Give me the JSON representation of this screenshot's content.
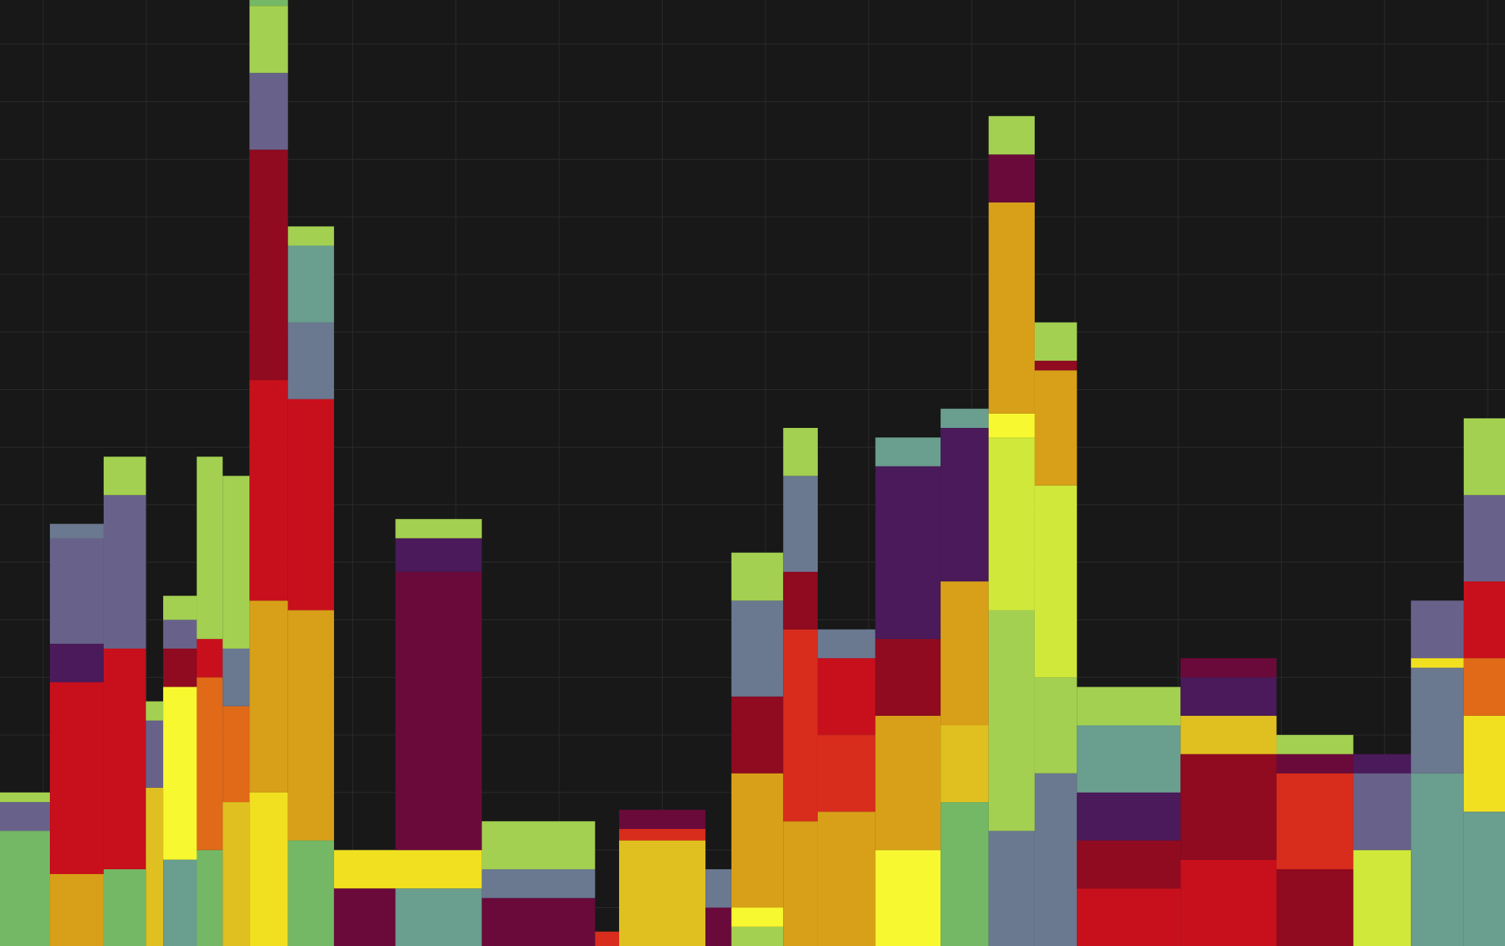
{
  "chart_data": {
    "type": "bar",
    "stacked": true,
    "grid": true,
    "legend": "none",
    "title": "",
    "xlabel": "",
    "ylabel": "",
    "xlim": [
      0,
      1568
    ],
    "ylim": [
      0,
      986
    ],
    "grid_x_step": 107.5,
    "grid_y_step": 60,
    "colors": {
      "background": "#181818",
      "grid": "#2a2a2a",
      "lime": "#cfe83a",
      "light_green": "#a3d050",
      "green": "#74b865",
      "teal": "#6a9e8e",
      "slate": "#6a7890",
      "grey_purple": "#68628a",
      "purple": "#4a1a5a",
      "wine": "#6a0a3a",
      "maroon": "#900a20",
      "red": "#c8101c",
      "vermilion": "#d82c1c",
      "orange": "#e06a18",
      "amber": "#d8a018",
      "yellow": "#f0e020",
      "bright_yellow": "#f8f830",
      "gold": "#e0c020"
    },
    "groups": [
      {
        "x0": 0,
        "x1": 52,
        "stack": [
          [
            "green",
            120
          ],
          [
            "grey_purple",
            30
          ],
          [
            "light_green",
            10
          ]
        ]
      },
      {
        "x0": 52,
        "x1": 108,
        "stack": [
          [
            "amber",
            75
          ],
          [
            "red",
            200
          ],
          [
            "purple",
            40
          ],
          [
            "grey_purple",
            110
          ],
          [
            "slate",
            15
          ]
        ]
      },
      {
        "x0": 108,
        "x1": 152,
        "stack": [
          [
            "green",
            80
          ],
          [
            "red",
            230
          ],
          [
            "grey_purple",
            160
          ],
          [
            "light_green",
            40
          ]
        ]
      },
      {
        "x0": 152,
        "x1": 170,
        "stack": [
          [
            "gold",
            165
          ],
          [
            "grey_purple",
            70
          ],
          [
            "light_green",
            20
          ]
        ]
      },
      {
        "x0": 170,
        "x1": 205,
        "stack": [
          [
            "teal",
            90
          ],
          [
            "bright_yellow",
            180
          ],
          [
            "maroon",
            40
          ],
          [
            "grey_purple",
            30
          ],
          [
            "light_green",
            25
          ]
        ]
      },
      {
        "x0": 205,
        "x1": 232,
        "stack": [
          [
            "green",
            100
          ],
          [
            "orange",
            180
          ],
          [
            "red",
            40
          ],
          [
            "light_green",
            190
          ]
        ]
      },
      {
        "x0": 232,
        "x1": 260,
        "stack": [
          [
            "gold",
            150
          ],
          [
            "orange",
            100
          ],
          [
            "slate",
            60
          ],
          [
            "light_green",
            180
          ]
        ]
      },
      {
        "x0": 260,
        "x1": 300,
        "stack": [
          [
            "yellow",
            160
          ],
          [
            "amber",
            200
          ],
          [
            "red",
            230
          ],
          [
            "maroon",
            240
          ],
          [
            "grey_purple",
            80
          ],
          [
            "light_green",
            70
          ],
          [
            "green",
            20
          ]
        ]
      },
      {
        "x0": 300,
        "x1": 348,
        "stack": [
          [
            "green",
            110
          ],
          [
            "amber",
            240
          ],
          [
            "red",
            220
          ],
          [
            "slate",
            80
          ],
          [
            "teal",
            80
          ],
          [
            "light_green",
            20
          ]
        ]
      },
      {
        "x0": 348,
        "x1": 412,
        "stack": [
          [
            "wine",
            60
          ],
          [
            "yellow",
            40
          ]
        ]
      },
      {
        "x0": 412,
        "x1": 502,
        "stack": [
          [
            "teal",
            60
          ],
          [
            "yellow",
            40
          ],
          [
            "wine",
            290
          ],
          [
            "purple",
            35
          ],
          [
            "light_green",
            20
          ]
        ]
      },
      {
        "x0": 502,
        "x1": 620,
        "stack": [
          [
            "wine",
            50
          ],
          [
            "slate",
            30
          ],
          [
            "light_green",
            50
          ]
        ]
      },
      {
        "x0": 620,
        "x1": 645,
        "stack": [
          [
            "vermilion",
            15
          ]
        ]
      },
      {
        "x0": 645,
        "x1": 735,
        "stack": [
          [
            "gold",
            110
          ],
          [
            "vermilion",
            12
          ],
          [
            "wine",
            20
          ]
        ]
      },
      {
        "x0": 735,
        "x1": 762,
        "stack": [
          [
            "wine",
            40
          ],
          [
            "slate",
            40
          ]
        ]
      },
      {
        "x0": 762,
        "x1": 816,
        "stack": [
          [
            "light_green",
            20
          ],
          [
            "bright_yellow",
            20
          ],
          [
            "amber",
            140
          ],
          [
            "maroon",
            80
          ],
          [
            "slate",
            100
          ],
          [
            "light_green",
            50
          ]
        ]
      },
      {
        "x0": 816,
        "x1": 852,
        "stack": [
          [
            "amber",
            130
          ],
          [
            "vermilion",
            200
          ],
          [
            "maroon",
            60
          ],
          [
            "slate",
            100
          ],
          [
            "light_green",
            50
          ]
        ]
      },
      {
        "x0": 852,
        "x1": 912,
        "stack": [
          [
            "amber",
            140
          ],
          [
            "vermilion",
            80
          ],
          [
            "red",
            80
          ],
          [
            "slate",
            30
          ]
        ]
      },
      {
        "x0": 912,
        "x1": 980,
        "stack": [
          [
            "bright_yellow",
            100
          ],
          [
            "amber",
            140
          ],
          [
            "maroon",
            80
          ],
          [
            "purple",
            180
          ],
          [
            "teal",
            30
          ]
        ]
      },
      {
        "x0": 980,
        "x1": 1030,
        "stack": [
          [
            "green",
            150
          ],
          [
            "gold",
            80
          ],
          [
            "amber",
            150
          ],
          [
            "purple",
            160
          ],
          [
            "teal",
            20
          ]
        ]
      },
      {
        "x0": 1030,
        "x1": 1078,
        "stack": [
          [
            "slate",
            120
          ],
          [
            "light_green",
            230
          ],
          [
            "lime",
            180
          ],
          [
            "bright_yellow",
            25
          ],
          [
            "amber",
            220
          ],
          [
            "wine",
            50
          ],
          [
            "light_green",
            40
          ]
        ]
      },
      {
        "x0": 1078,
        "x1": 1122,
        "stack": [
          [
            "slate",
            180
          ],
          [
            "light_green",
            100
          ],
          [
            "lime",
            200
          ],
          [
            "amber",
            120
          ],
          [
            "maroon",
            10
          ],
          [
            "light_green",
            40
          ]
        ]
      },
      {
        "x0": 1122,
        "x1": 1230,
        "stack": [
          [
            "red",
            60
          ],
          [
            "maroon",
            50
          ],
          [
            "purple",
            50
          ],
          [
            "teal",
            70
          ],
          [
            "light_green",
            40
          ]
        ]
      },
      {
        "x0": 1230,
        "x1": 1330,
        "stack": [
          [
            "red",
            90
          ],
          [
            "maroon",
            110
          ],
          [
            "gold",
            40
          ],
          [
            "purple",
            40
          ],
          [
            "wine",
            20
          ]
        ]
      },
      {
        "x0": 1330,
        "x1": 1410,
        "stack": [
          [
            "maroon",
            80
          ],
          [
            "vermilion",
            100
          ],
          [
            "wine",
            20
          ],
          [
            "light_green",
            20
          ]
        ]
      },
      {
        "x0": 1410,
        "x1": 1470,
        "stack": [
          [
            "lime",
            100
          ],
          [
            "grey_purple",
            80
          ],
          [
            "purple",
            20
          ]
        ]
      },
      {
        "x0": 1470,
        "x1": 1525,
        "stack": [
          [
            "teal",
            180
          ],
          [
            "slate",
            110
          ],
          [
            "yellow",
            10
          ],
          [
            "grey_purple",
            60
          ]
        ]
      },
      {
        "x0": 1525,
        "x1": 1568,
        "stack": [
          [
            "teal",
            140
          ],
          [
            "yellow",
            100
          ],
          [
            "orange",
            60
          ],
          [
            "red",
            80
          ],
          [
            "grey_purple",
            90
          ],
          [
            "light_green",
            80
          ]
        ]
      }
    ]
  }
}
